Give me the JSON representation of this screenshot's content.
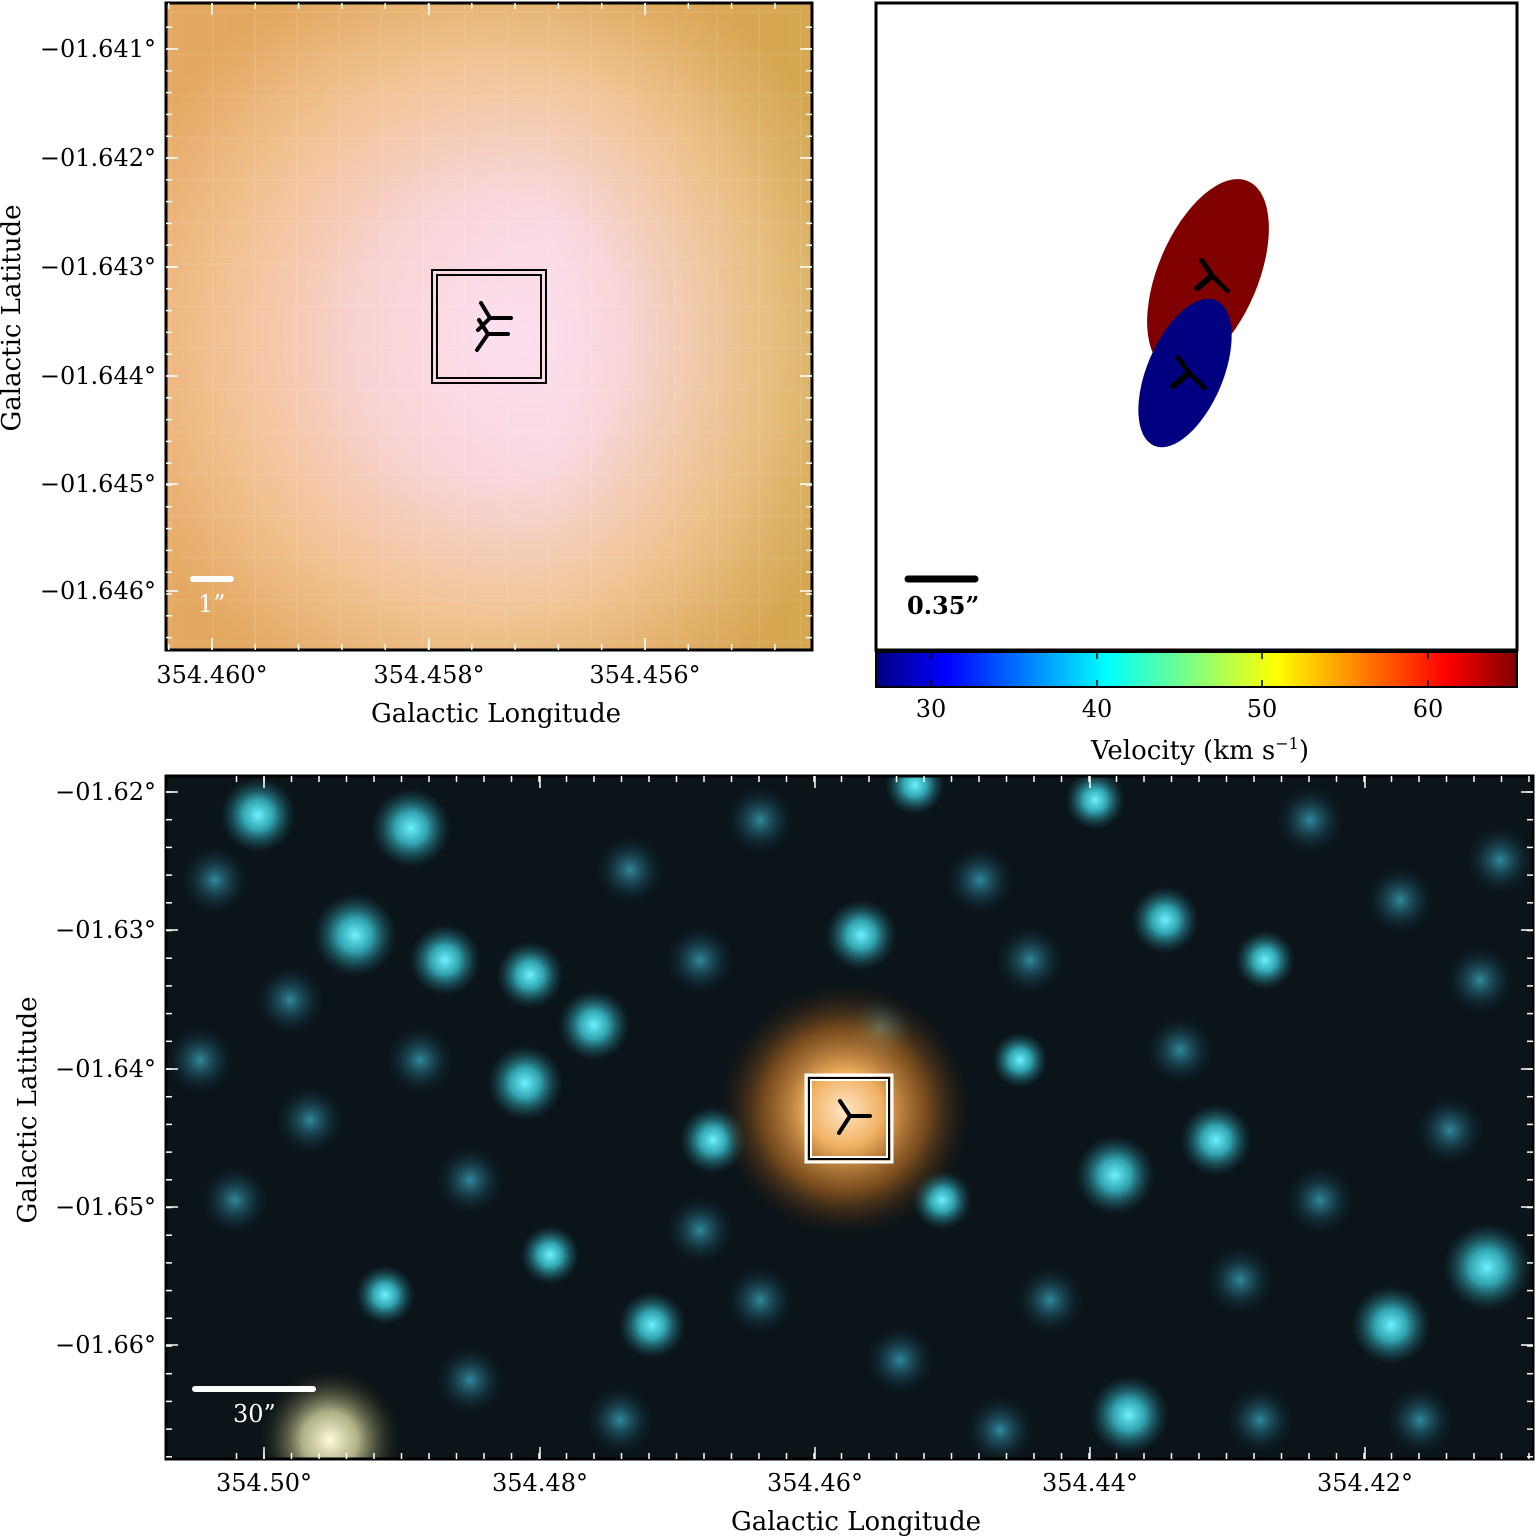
{
  "panels": {
    "top_left": {
      "ylabel": "Galactic Latitude",
      "xlabel": "Galactic Longitude",
      "yticks": [
        "−01.641°",
        "−01.642°",
        "−01.643°",
        "−01.644°",
        "−01.645°",
        "−01.646°"
      ],
      "xticks": [
        "354.460°",
        "354.458°",
        "354.456°"
      ],
      "scalebar_label": "1”"
    },
    "top_right": {
      "scalebar_label": "0.35”",
      "colorbar": {
        "label": "Velocity (km s",
        "label_sup": "−1",
        "label_close": ")",
        "ticks": [
          "30",
          "40",
          "50",
          "60"
        ],
        "range": [
          26.5,
          65.3
        ],
        "colormap": "jet"
      },
      "components": [
        {
          "velocity": 65,
          "color": "#800000"
        },
        {
          "velocity": 27,
          "color": "#000080"
        }
      ]
    },
    "bottom": {
      "ylabel": "Galactic Latitude",
      "xlabel": "Galactic Longitude",
      "yticks": [
        "−01.62°",
        "−01.63°",
        "−01.64°",
        "−01.65°",
        "−01.66°"
      ],
      "xticks": [
        "354.50°",
        "354.48°",
        "354.46°",
        "354.44°",
        "354.42°"
      ],
      "scalebar_label": "30”"
    }
  }
}
